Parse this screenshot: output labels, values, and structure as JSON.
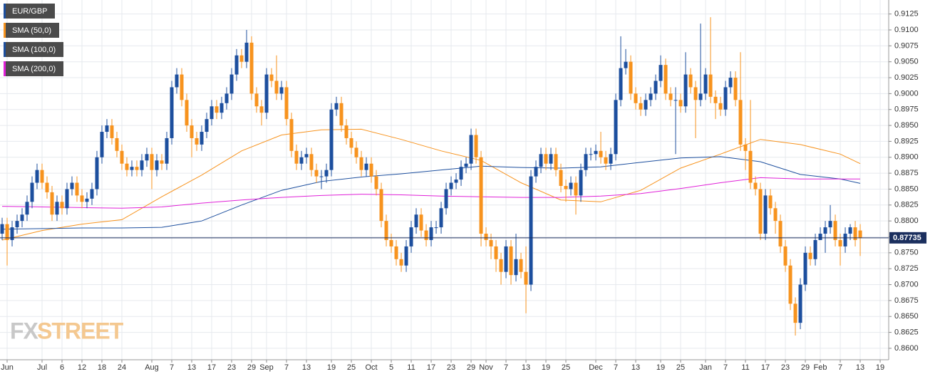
{
  "chart_data": {
    "type": "candlestick",
    "symbol": "EUR/GBP",
    "up_color": "#1d4f9e",
    "down_color": "#f7931e",
    "open": [
      0.878,
      0.8795,
      0.877,
      0.879,
      0.88,
      0.881,
      0.883,
      0.886,
      0.888,
      0.886,
      0.8845,
      0.881,
      0.883,
      0.882,
      0.885,
      0.886,
      0.884,
      0.883,
      0.8835,
      0.885,
      0.89,
      0.894,
      0.895,
      0.893,
      0.891,
      0.889,
      0.888,
      0.8885,
      0.888,
      0.8895,
      0.8905,
      0.888,
      0.8895,
      0.889,
      0.893,
      0.901,
      0.903,
      0.899,
      0.895,
      0.893,
      0.892,
      0.894,
      0.896,
      0.898,
      0.897,
      0.8985,
      0.9,
      0.903,
      0.906,
      0.905,
      0.908,
      0.9,
      0.898,
      0.897,
      0.903,
      0.902,
      0.9,
      0.901,
      0.896,
      0.891,
      0.889,
      0.89,
      0.8905,
      0.888,
      0.887,
      0.887,
      0.888,
      0.8975,
      0.8985,
      0.895,
      0.893,
      0.8915,
      0.89,
      0.888,
      0.889,
      0.887,
      0.885,
      0.88,
      0.877,
      0.876,
      0.874,
      0.873,
      0.876,
      0.879,
      0.881,
      0.8785,
      0.877,
      0.879,
      0.879,
      0.882,
      0.885,
      0.886,
      0.8865,
      0.8885,
      0.889,
      0.8935,
      0.89,
      0.878,
      0.877,
      0.876,
      0.874,
      0.872,
      0.876,
      0.8715,
      0.874,
      0.872,
      0.87,
      0.887,
      0.8885,
      0.8905,
      0.889,
      0.8905,
      0.888,
      0.8855,
      0.885,
      0.886,
      0.884,
      0.888,
      0.8905,
      0.8905,
      0.891,
      0.89,
      0.889,
      0.8905,
      0.899,
      0.904,
      0.905,
      0.9,
      0.8985,
      0.8975,
      0.899,
      0.9,
      0.902,
      0.9045,
      0.9,
      0.899,
      0.899,
      0.898,
      0.903,
      0.901,
      0.899,
      0.9,
      0.903,
      0.8995,
      0.8985,
      0.8975,
      0.901,
      0.9025,
      0.899,
      0.892,
      0.891,
      0.886,
      0.885,
      0.878,
      0.884,
      0.882,
      0.88,
      0.876,
      0.873,
      0.867,
      0.864,
      0.87,
      0.875,
      0.874,
      0.877,
      0.878,
      0.879,
      0.88,
      0.877,
      0.876,
      0.878,
      0.879,
      0.8785
    ],
    "high": [
      0.8805,
      0.8805,
      0.88,
      0.881,
      0.882,
      0.884,
      0.887,
      0.889,
      0.889,
      0.887,
      0.8855,
      0.884,
      0.884,
      0.886,
      0.887,
      0.887,
      0.885,
      0.8845,
      0.886,
      0.891,
      0.895,
      0.896,
      0.896,
      0.894,
      0.892,
      0.89,
      0.8895,
      0.8895,
      0.8905,
      0.8915,
      0.8915,
      0.8905,
      0.8905,
      0.894,
      0.902,
      0.904,
      0.904,
      0.9,
      0.896,
      0.894,
      0.895,
      0.897,
      0.899,
      0.899,
      0.8995,
      0.901,
      0.904,
      0.907,
      0.907,
      0.91,
      0.909,
      0.901,
      0.899,
      0.904,
      0.904,
      0.906,
      0.902,
      0.902,
      0.897,
      0.892,
      0.891,
      0.8915,
      0.8915,
      0.889,
      0.888,
      0.889,
      0.8985,
      0.8995,
      0.8995,
      0.896,
      0.894,
      0.8925,
      0.891,
      0.89,
      0.89,
      0.888,
      0.886,
      0.881,
      0.878,
      0.877,
      0.875,
      0.877,
      0.88,
      0.882,
      0.882,
      0.8795,
      0.88,
      0.88,
      0.883,
      0.886,
      0.887,
      0.8875,
      0.8895,
      0.89,
      0.8945,
      0.8945,
      0.891,
      0.879,
      0.878,
      0.877,
      0.875,
      0.877,
      0.877,
      0.878,
      0.875,
      0.876,
      0.888,
      0.8895,
      0.8915,
      0.8915,
      0.8915,
      0.8915,
      0.889,
      0.8865,
      0.887,
      0.887,
      0.889,
      0.8915,
      0.8915,
      0.892,
      0.894,
      0.891,
      0.8915,
      0.9,
      0.909,
      0.907,
      0.906,
      0.901,
      0.8995,
      0.9,
      0.901,
      0.903,
      0.906,
      0.9055,
      0.901,
      0.901,
      0.9,
      0.9065,
      0.904,
      0.902,
      0.911,
      0.904,
      0.912,
      0.9005,
      0.8995,
      0.902,
      0.9035,
      0.9035,
      0.9065,
      0.893,
      0.899,
      0.887,
      0.886,
      0.885,
      0.885,
      0.883,
      0.881,
      0.877,
      0.874,
      0.868,
      0.871,
      0.876,
      0.876,
      0.878,
      0.879,
      0.88,
      0.8825,
      0.881,
      0.878,
      0.879,
      0.8795,
      0.88,
      0.8795
    ],
    "low": [
      0.877,
      0.873,
      0.876,
      0.878,
      0.879,
      0.88,
      0.882,
      0.885,
      0.885,
      0.8835,
      0.88,
      0.88,
      0.881,
      0.881,
      0.884,
      0.883,
      0.882,
      0.882,
      0.8825,
      0.884,
      0.889,
      0.893,
      0.892,
      0.89,
      0.888,
      0.887,
      0.887,
      0.887,
      0.887,
      0.8885,
      0.885,
      0.887,
      0.888,
      0.888,
      0.892,
      0.9,
      0.898,
      0.894,
      0.89,
      0.891,
      0.891,
      0.893,
      0.895,
      0.896,
      0.896,
      0.8975,
      0.899,
      0.902,
      0.904,
      0.904,
      0.899,
      0.897,
      0.895,
      0.896,
      0.901,
      0.899,
      0.899,
      0.895,
      0.89,
      0.888,
      0.888,
      0.889,
      0.887,
      0.886,
      0.885,
      0.886,
      0.887,
      0.8965,
      0.894,
      0.892,
      0.8905,
      0.889,
      0.887,
      0.887,
      0.886,
      0.884,
      0.879,
      0.876,
      0.875,
      0.873,
      0.872,
      0.872,
      0.875,
      0.878,
      0.8775,
      0.876,
      0.876,
      0.878,
      0.878,
      0.881,
      0.884,
      0.885,
      0.8855,
      0.8875,
      0.888,
      0.889,
      0.876,
      0.876,
      0.874,
      0.872,
      0.87,
      0.871,
      0.87,
      0.8705,
      0.871,
      0.8655,
      0.869,
      0.886,
      0.8875,
      0.888,
      0.888,
      0.887,
      0.8845,
      0.883,
      0.884,
      0.881,
      0.883,
      0.887,
      0.8895,
      0.8895,
      0.889,
      0.888,
      0.888,
      0.8895,
      0.898,
      0.903,
      0.899,
      0.8975,
      0.8965,
      0.8965,
      0.898,
      0.899,
      0.901,
      0.899,
      0.898,
      0.8905,
      0.897,
      0.897,
      0.9,
      0.893,
      0.898,
      0.899,
      0.8985,
      0.896,
      0.8965,
      0.8965,
      0.9,
      0.898,
      0.891,
      0.888,
      0.885,
      0.884,
      0.877,
      0.877,
      0.881,
      0.878,
      0.875,
      0.872,
      0.866,
      0.862,
      0.863,
      0.869,
      0.873,
      0.873,
      0.877,
      0.875,
      0.878,
      0.876,
      0.873,
      0.875,
      0.877,
      0.876,
      0.8745
    ],
    "close": [
      0.8795,
      0.877,
      0.879,
      0.88,
      0.881,
      0.883,
      0.886,
      0.888,
      0.886,
      0.8845,
      0.881,
      0.883,
      0.882,
      0.885,
      0.886,
      0.884,
      0.883,
      0.8835,
      0.885,
      0.89,
      0.894,
      0.895,
      0.893,
      0.891,
      0.889,
      0.888,
      0.8885,
      0.888,
      0.8895,
      0.8905,
      0.888,
      0.8895,
      0.889,
      0.893,
      0.901,
      0.903,
      0.899,
      0.895,
      0.893,
      0.892,
      0.894,
      0.896,
      0.898,
      0.897,
      0.8985,
      0.9,
      0.903,
      0.906,
      0.905,
      0.908,
      0.9,
      0.898,
      0.897,
      0.903,
      0.902,
      0.9,
      0.901,
      0.896,
      0.891,
      0.889,
      0.89,
      0.8905,
      0.888,
      0.887,
      0.887,
      0.888,
      0.8975,
      0.8985,
      0.895,
      0.893,
      0.8915,
      0.89,
      0.888,
      0.889,
      0.887,
      0.885,
      0.88,
      0.877,
      0.876,
      0.874,
      0.873,
      0.876,
      0.879,
      0.881,
      0.8785,
      0.877,
      0.879,
      0.879,
      0.882,
      0.885,
      0.886,
      0.8865,
      0.8885,
      0.889,
      0.8935,
      0.89,
      0.878,
      0.877,
      0.876,
      0.874,
      0.872,
      0.876,
      0.8715,
      0.874,
      0.872,
      0.87,
      0.887,
      0.8885,
      0.8905,
      0.889,
      0.8905,
      0.888,
      0.8855,
      0.885,
      0.886,
      0.884,
      0.888,
      0.8905,
      0.8905,
      0.891,
      0.89,
      0.889,
      0.8905,
      0.899,
      0.904,
      0.905,
      0.9,
      0.8985,
      0.8975,
      0.899,
      0.9,
      0.902,
      0.9045,
      0.9,
      0.899,
      0.899,
      0.898,
      0.903,
      0.901,
      0.899,
      0.9,
      0.903,
      0.8995,
      0.8985,
      0.8975,
      0.901,
      0.9025,
      0.899,
      0.892,
      0.891,
      0.886,
      0.885,
      0.878,
      0.884,
      0.882,
      0.88,
      0.876,
      0.873,
      0.867,
      0.864,
      0.87,
      0.875,
      0.874,
      0.877,
      0.878,
      0.879,
      0.88,
      0.877,
      0.876,
      0.878,
      0.879,
      0.877,
      0.87735
    ],
    "series": [
      {
        "name": "SMA (50,0)",
        "color": "#f7931e",
        "x": [
          0,
          8,
          16,
          24,
          32,
          40,
          48,
          56,
          64,
          72,
          80,
          88,
          96,
          104,
          112,
          120,
          128,
          136,
          144,
          152,
          160,
          168,
          172
        ],
        "values": [
          0.877,
          0.8785,
          0.8795,
          0.8802,
          0.8838,
          0.8872,
          0.891,
          0.8935,
          0.8943,
          0.8944,
          0.8928,
          0.891,
          0.8895,
          0.886,
          0.8833,
          0.883,
          0.8848,
          0.8883,
          0.8905,
          0.8928,
          0.892,
          0.8905,
          0.889
        ]
      },
      {
        "name": "SMA (100,0)",
        "color": "#1d4f9e",
        "x": [
          0,
          8,
          16,
          24,
          32,
          40,
          48,
          56,
          64,
          72,
          80,
          88,
          96,
          104,
          112,
          120,
          128,
          136,
          144,
          152,
          160,
          168,
          172
        ],
        "values": [
          0.8787,
          0.8788,
          0.8789,
          0.8789,
          0.879,
          0.88,
          0.8825,
          0.8848,
          0.8862,
          0.8869,
          0.8874,
          0.888,
          0.8886,
          0.8884,
          0.8883,
          0.8885,
          0.8892,
          0.8899,
          0.8901,
          0.8893,
          0.8873,
          0.8866,
          0.8859
        ]
      },
      {
        "name": "SMA (200,0)",
        "color": "#e020d8",
        "x": [
          0,
          8,
          16,
          24,
          32,
          40,
          48,
          56,
          64,
          72,
          80,
          88,
          96,
          104,
          112,
          120,
          128,
          136,
          144,
          152,
          160,
          168,
          172
        ],
        "values": [
          0.8823,
          0.8822,
          0.8821,
          0.882,
          0.8822,
          0.8828,
          0.8833,
          0.8837,
          0.884,
          0.8842,
          0.8841,
          0.8839,
          0.8838,
          0.8837,
          0.8837,
          0.8839,
          0.8843,
          0.8851,
          0.886,
          0.8868,
          0.8866,
          0.8866,
          0.8866
        ]
      }
    ],
    "last_price": 0.87735,
    "last_price_color": "#1b2f5e",
    "xlim": [
      -0.43,
      177.71
    ],
    "xticks": [
      {
        "value": 1,
        "label": "Jun"
      },
      {
        "value": 8,
        "label": "Jul"
      },
      {
        "value": 12,
        "label": "6"
      },
      {
        "value": 16,
        "label": "12"
      },
      {
        "value": 20,
        "label": "18"
      },
      {
        "value": 24,
        "label": "24"
      },
      {
        "value": 30,
        "label": "Aug"
      },
      {
        "value": 34,
        "label": "7"
      },
      {
        "value": 38,
        "label": "13"
      },
      {
        "value": 42,
        "label": "17"
      },
      {
        "value": 46,
        "label": "23"
      },
      {
        "value": 50,
        "label": "29"
      },
      {
        "value": 53,
        "label": "Sep"
      },
      {
        "value": 57,
        "label": "7"
      },
      {
        "value": 61,
        "label": "13"
      },
      {
        "value": 66,
        "label": "19"
      },
      {
        "value": 70,
        "label": "25"
      },
      {
        "value": 74,
        "label": "Oct"
      },
      {
        "value": 78,
        "label": "5"
      },
      {
        "value": 82,
        "label": "11"
      },
      {
        "value": 86,
        "label": "17"
      },
      {
        "value": 90,
        "label": "23"
      },
      {
        "value": 94,
        "label": "29"
      },
      {
        "value": 97,
        "label": "Nov"
      },
      {
        "value": 101,
        "label": "7"
      },
      {
        "value": 105,
        "label": "13"
      },
      {
        "value": 109,
        "label": "19"
      },
      {
        "value": 113,
        "label": "25"
      },
      {
        "value": 119,
        "label": "Dec"
      },
      {
        "value": 123,
        "label": "7"
      },
      {
        "value": 127,
        "label": "13"
      },
      {
        "value": 132,
        "label": "19"
      },
      {
        "value": 136,
        "label": "25"
      },
      {
        "value": 141,
        "label": "Jan"
      },
      {
        "value": 145,
        "label": "7"
      },
      {
        "value": 149,
        "label": "11"
      },
      {
        "value": 153,
        "label": "17"
      },
      {
        "value": 157,
        "label": "23"
      },
      {
        "value": 161,
        "label": "29"
      },
      {
        "value": 164,
        "label": "Feb"
      },
      {
        "value": 168,
        "label": "7"
      },
      {
        "value": 172,
        "label": "13"
      },
      {
        "value": 176,
        "label": "19"
      }
    ],
    "ylim": [
      0.8582,
      0.9147
    ],
    "yticks": [
      {
        "value": 0.86,
        "label": "0.8600"
      },
      0.8625,
      {
        "value": 0.865,
        "label": "0.8650"
      },
      0.8675,
      {
        "value": 0.87,
        "label": "0.8700"
      },
      0.8725,
      {
        "value": 0.875,
        "label": "0.8750"
      },
      0.8775,
      {
        "value": 0.88,
        "label": "0.8800"
      },
      0.8825,
      {
        "value": 0.885,
        "label": "0.8850"
      },
      0.8875,
      {
        "value": 0.89,
        "label": "0.8900"
      },
      0.8925,
      {
        "value": 0.895,
        "label": "0.8950"
      },
      0.8975,
      {
        "value": 0.9,
        "label": "0.9000"
      },
      0.9025,
      {
        "value": 0.905,
        "label": "0.9050"
      },
      0.9075,
      {
        "value": 0.91,
        "label": "0.9100"
      },
      0.9125
    ],
    "grid": true,
    "legend": "top-left",
    "watermark": [
      "FX",
      "STREET"
    ]
  }
}
